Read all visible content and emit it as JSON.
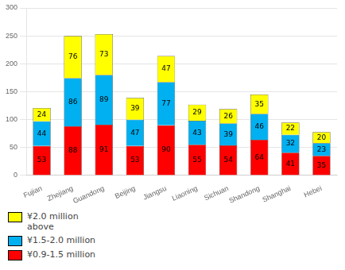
{
  "chart_data": {
    "type": "bar",
    "stacked": true,
    "categories": [
      "Fujian",
      "Zhejiang",
      "Guandong",
      "Beijing",
      "Jiangsu",
      "Liaoning",
      "Sichuan",
      "Shandong",
      "Shanghai",
      "Hebei"
    ],
    "series": [
      {
        "name": "¥0.9-1.5 million",
        "color": "#FF0000",
        "values": [
          53,
          88,
          91,
          53,
          90,
          55,
          54,
          64,
          41,
          35
        ]
      },
      {
        "name": "¥1.5-2.0 million",
        "color": "#00B0F0",
        "values": [
          44,
          86,
          89,
          47,
          77,
          43,
          39,
          46,
          32,
          23
        ]
      },
      {
        "name": "¥2.0 million\nabove",
        "color": "#FFFF00",
        "values": [
          24,
          76,
          73,
          39,
          47,
          29,
          26,
          35,
          22,
          20
        ]
      }
    ],
    "ylim": [
      0,
      300
    ],
    "yticks": [
      0,
      50,
      100,
      150,
      200,
      250,
      300
    ],
    "grid": true,
    "legend": "lower left",
    "data_labels": true
  }
}
